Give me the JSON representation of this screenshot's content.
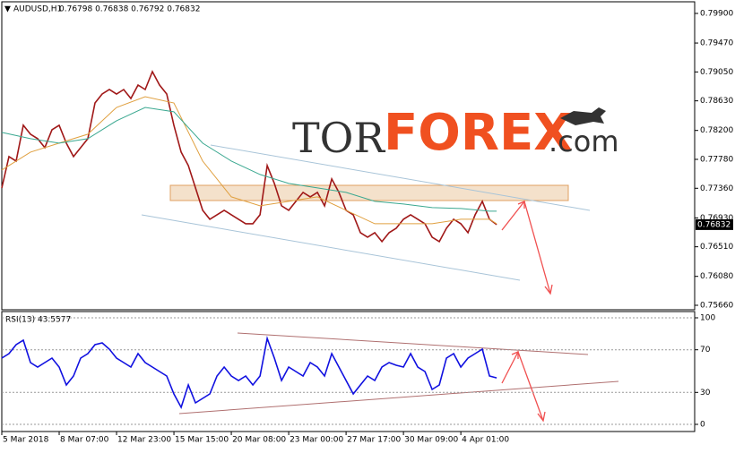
{
  "chart_data": [
    {
      "type": "line",
      "title": "AUDUSD,H1",
      "subtitle": "0.76798 0.76838 0.76792 0.76832",
      "watermark": [
        "TOR",
        "FOREX",
        ".com"
      ],
      "last_price": {
        "value": 0.76832,
        "label": "0.76832"
      },
      "xlim": [
        0,
        96.6
      ],
      "xticks": [
        {
          "value": 0,
          "label": "5 Mar 2018"
        },
        {
          "value": 8,
          "label": "8 Mar 07:00"
        },
        {
          "value": 16,
          "label": "12 Mar 23:00"
        },
        {
          "value": 24,
          "label": "15 Mar 15:00"
        },
        {
          "value": 32,
          "label": "20 Mar 08:00"
        },
        {
          "value": 40,
          "label": "23 Mar 00:00"
        },
        {
          "value": 48,
          "label": "27 Mar 17:00"
        },
        {
          "value": 56,
          "label": "30 Mar 09:00"
        },
        {
          "value": 64,
          "label": "4 Apr 01:00"
        }
      ],
      "ylim": [
        0.7566,
        0.799
      ],
      "yticks": [
        {
          "value": 0.799,
          "label": "0.79900"
        },
        {
          "value": 0.7947,
          "label": "0.79470"
        },
        {
          "value": 0.7905,
          "label": "0.79050"
        },
        {
          "value": 0.7863,
          "label": "0.78630"
        },
        {
          "value": 0.782,
          "label": "0.78200"
        },
        {
          "value": 0.7778,
          "label": "0.77780"
        },
        {
          "value": 0.7736,
          "label": "0.77360"
        },
        {
          "value": 0.7693,
          "label": "0.76930"
        },
        {
          "value": 0.7651,
          "label": "0.76510"
        },
        {
          "value": 0.7608,
          "label": "0.76080"
        },
        {
          "value": 0.7566,
          "label": "0.75660"
        }
      ],
      "series": [
        {
          "color": "#a01818",
          "x": [
            0,
            1,
            2,
            3,
            4,
            5,
            6,
            7,
            8,
            9,
            10,
            11,
            12,
            13,
            14,
            15,
            16,
            17,
            18,
            19,
            20,
            21,
            22,
            23,
            24,
            25,
            26,
            27,
            28,
            29,
            30,
            31,
            32,
            33,
            34,
            35,
            36,
            37,
            38,
            39,
            40,
            41,
            42,
            43,
            44,
            45,
            46,
            47,
            48,
            49,
            50,
            51,
            52,
            53,
            54,
            55,
            56,
            57,
            58,
            59,
            60,
            61,
            62,
            63,
            64,
            65,
            66,
            67,
            68,
            69
          ],
          "values": [
            0.77364,
            0.7782,
            0.77755,
            0.78275,
            0.78145,
            0.7808,
            0.7795,
            0.7821,
            0.78275,
            0.78015,
            0.7782,
            0.7795,
            0.7808,
            0.786,
            0.7873,
            0.78795,
            0.7873,
            0.78795,
            0.78665,
            0.7886,
            0.78795,
            0.79055,
            0.7886,
            0.7873,
            0.78275,
            0.77885,
            0.7769,
            0.77365,
            0.7704,
            0.7691,
            0.76975,
            0.7704,
            0.76975,
            0.7691,
            0.76845,
            0.76845,
            0.76975,
            0.7769,
            0.7743,
            0.77105,
            0.7704,
            0.7717,
            0.773,
            0.77235,
            0.773,
            0.77105,
            0.77495,
            0.773,
            0.7704,
            0.76975,
            0.76715,
            0.7665,
            0.76715,
            0.76585,
            0.76715,
            0.7678,
            0.7691,
            0.76975,
            0.7691,
            0.76845,
            0.7665,
            0.76585,
            0.7678,
            0.7691,
            0.76845,
            0.76715,
            0.76975,
            0.7717,
            0.7691,
            0.76832
          ]
        },
        {
          "color": "#e0a040",
          "x": [
            0,
            4,
            8,
            12,
            16,
            20,
            24,
            28,
            32,
            36,
            40,
            44,
            48,
            52,
            56,
            60,
            64,
            68,
            69
          ],
          "values": [
            0.77625,
            0.77885,
            0.78015,
            0.78145,
            0.78535,
            0.7869,
            0.786,
            0.77755,
            0.77235,
            0.77105,
            0.7717,
            0.77235,
            0.7704,
            0.76845,
            0.76845,
            0.76845,
            0.7691,
            0.7691,
            0.76845
          ]
        },
        {
          "color": "#3aa890",
          "x": [
            0,
            4,
            8,
            12,
            16,
            20,
            24,
            28,
            32,
            36,
            40,
            44,
            48,
            52,
            56,
            60,
            64,
            68,
            69
          ],
          "values": [
            0.78171,
            0.7808,
            0.78015,
            0.7808,
            0.7834,
            0.78535,
            0.7847,
            0.78015,
            0.77755,
            0.7756,
            0.7743,
            0.77365,
            0.773,
            0.7717,
            0.77131,
            0.77079,
            0.77066,
            0.77027,
            0.77027
          ]
        }
      ]
    },
    {
      "type": "line",
      "title": "RSI(13) 43.5577",
      "xlim": [
        0,
        96.6
      ],
      "ylim": [
        0,
        100
      ],
      "yticks": [
        0,
        30,
        70,
        100
      ],
      "grid": true,
      "series": [
        {
          "color": "#1010e0",
          "x": [
            0,
            1,
            2,
            3,
            4,
            5,
            6,
            7,
            8,
            9,
            10,
            11,
            12,
            13,
            14,
            15,
            16,
            17,
            18,
            19,
            20,
            21,
            22,
            23,
            24,
            25,
            26,
            27,
            28,
            29,
            30,
            31,
            32,
            33,
            34,
            35,
            36,
            37,
            38,
            39,
            40,
            41,
            42,
            43,
            44,
            45,
            46,
            47,
            48,
            49,
            50,
            51,
            52,
            53,
            54,
            55,
            56,
            57,
            58,
            59,
            60,
            61,
            62,
            63,
            64,
            65,
            66,
            67,
            68,
            69
          ],
          "values": [
            62.2,
            66.4,
            74.8,
            79,
            58,
            53.8,
            58,
            62.2,
            53.8,
            37,
            45.4,
            62.2,
            66.4,
            74.8,
            76.5,
            70.6,
            62.2,
            58,
            53.8,
            66.4,
            58,
            53.8,
            49.6,
            45.4,
            28.6,
            16,
            37,
            20.2,
            24.4,
            28.6,
            45.4,
            53.8,
            45.4,
            41.2,
            45.4,
            37,
            45.4,
            80.7,
            62.2,
            41.2,
            53.8,
            49.6,
            45.4,
            58,
            53.8,
            45.4,
            66.4,
            53.8,
            41.2,
            28.6,
            37,
            45.4,
            41.2,
            53.8,
            58,
            55.5,
            53.8,
            66.4,
            53.8,
            49.6,
            32.8,
            37,
            62.2,
            66.4,
            53.8,
            62.2,
            66.4,
            70.6,
            45.4,
            43.6
          ]
        }
      ]
    }
  ]
}
